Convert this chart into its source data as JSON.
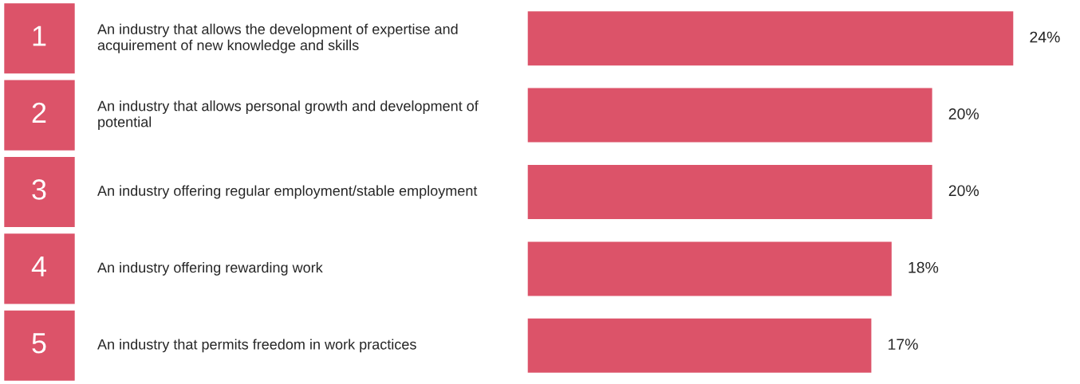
{
  "chart_data": {
    "type": "bar",
    "orientation": "horizontal",
    "categories": [
      "An industry that allows the development of expertise and acquirement of new knowledge and skills",
      "An industry that allows personal growth and development of potential",
      "An industry offering regular employment/stable employment",
      "An industry offering rewarding work",
      "An industry that permits freedom in work practices"
    ],
    "values": [
      24,
      20,
      20,
      18,
      17
    ],
    "value_labels": [
      "24%",
      "20%",
      "20%",
      "18%",
      "17%"
    ],
    "color": "#dc5369",
    "annotations": [
      "1",
      "2",
      "3",
      "4",
      "5"
    ],
    "legend": false
  }
}
